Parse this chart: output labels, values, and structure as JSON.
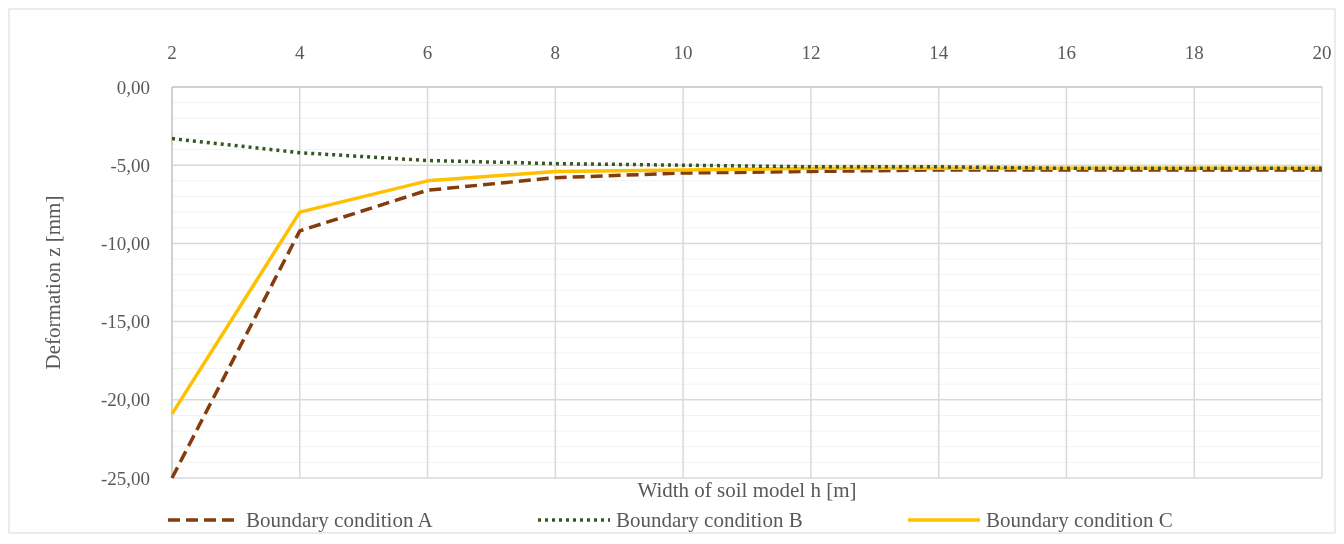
{
  "chart_data": {
    "type": "line",
    "xlabel": "Width of soil model h [m]",
    "ylabel": "Deformation z [mm]",
    "x": [
      2,
      4,
      6,
      8,
      10,
      12,
      14,
      16,
      18,
      20
    ],
    "xlim": [
      2,
      20
    ],
    "xticks": [
      2,
      4,
      6,
      8,
      10,
      12,
      14,
      16,
      18,
      20
    ],
    "ylim": [
      -25,
      0
    ],
    "yticks": [
      {
        "value": 0,
        "label": "0,00"
      },
      {
        "value": -1,
        "label": null
      },
      {
        "value": -2,
        "label": null
      },
      {
        "value": -3,
        "label": null
      },
      {
        "value": -4,
        "label": null
      },
      {
        "value": -5,
        "label": "-5,00"
      },
      {
        "value": -6,
        "label": null
      },
      {
        "value": -7,
        "label": null
      },
      {
        "value": -8,
        "label": null
      },
      {
        "value": -9,
        "label": null
      },
      {
        "value": -10,
        "label": "-10,00"
      },
      {
        "value": -11,
        "label": null
      },
      {
        "value": -12,
        "label": null
      },
      {
        "value": -13,
        "label": null
      },
      {
        "value": -14,
        "label": null
      },
      {
        "value": -15,
        "label": "-15,00"
      },
      {
        "value": -16,
        "label": null
      },
      {
        "value": -17,
        "label": null
      },
      {
        "value": -18,
        "label": null
      },
      {
        "value": -19,
        "label": null
      },
      {
        "value": -20,
        "label": "-20,00"
      },
      {
        "value": -21,
        "label": null
      },
      {
        "value": -22,
        "label": null
      },
      {
        "value": -23,
        "label": null
      },
      {
        "value": -24,
        "label": null
      },
      {
        "value": -25,
        "label": "-25,00"
      }
    ],
    "grid": true,
    "legend": "bottom",
    "marker": "none",
    "series": [
      {
        "name": "Boundary condition A",
        "color": "#843c0c",
        "line_style": "dashed",
        "values": [
          -25,
          -9.2,
          -6.6,
          -5.8,
          -5.5,
          -5.4,
          -5.3,
          -5.3,
          -5.3,
          -5.3
        ]
      },
      {
        "name": "Boundary condition B",
        "color": "#375623",
        "line_style": "dotted",
        "values": [
          -3.3,
          -4.2,
          -4.7,
          -4.9,
          -5.0,
          -5.1,
          -5.1,
          -5.2,
          -5.2,
          -5.2
        ]
      },
      {
        "name": "Boundary condition C",
        "color": "#ffc000",
        "line_style": "solid",
        "values": [
          -20.9,
          -8.0,
          -6.0,
          -5.4,
          -5.3,
          -5.2,
          -5.2,
          -5.2,
          -5.2,
          -5.2
        ]
      }
    ]
  }
}
